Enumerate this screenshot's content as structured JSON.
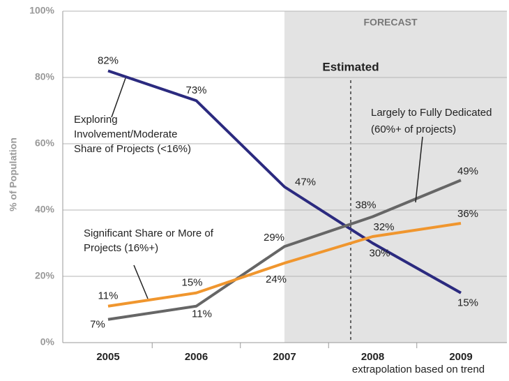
{
  "chart_data": {
    "type": "line",
    "categories": [
      "2005",
      "2006",
      "2007",
      "2008",
      "2009"
    ],
    "series": [
      {
        "name": [
          "Exploring",
          "Involvement/Moderate",
          "Share of Projects (<16%)"
        ],
        "color": "#2b2a7f",
        "values": [
          82,
          73,
          47,
          30,
          15
        ],
        "value_labels": [
          "82%",
          "73%",
          "47%",
          "30%",
          "15%"
        ]
      },
      {
        "name": [
          "Largely to Fully Dedicated",
          "(60%+ of projects)"
        ],
        "color": "#666666",
        "values": [
          7,
          11,
          29,
          38,
          49
        ],
        "value_labels": [
          "7%",
          "11%",
          "29%",
          "38%",
          "49%"
        ]
      },
      {
        "name": [
          "Significant Share or More of",
          "Projects (16%+)"
        ],
        "color": "#f0962e",
        "values": [
          11,
          15,
          24,
          32,
          36
        ],
        "value_labels": [
          "11%",
          "15%",
          "24%",
          "32%",
          "36%"
        ]
      }
    ],
    "ylim": [
      0,
      100
    ],
    "yticks": [
      {
        "value": 0,
        "label": "0%"
      },
      {
        "value": 20,
        "label": "20%"
      },
      {
        "value": 40,
        "label": "40%"
      },
      {
        "value": 60,
        "label": "60%"
      },
      {
        "value": 80,
        "label": "80%"
      },
      {
        "value": 100,
        "label": "100%"
      }
    ],
    "ylabel": "% of Population",
    "grid": true,
    "annotations": [
      "FORECAST",
      "Estimated",
      "extrapolation based on trend"
    ]
  }
}
